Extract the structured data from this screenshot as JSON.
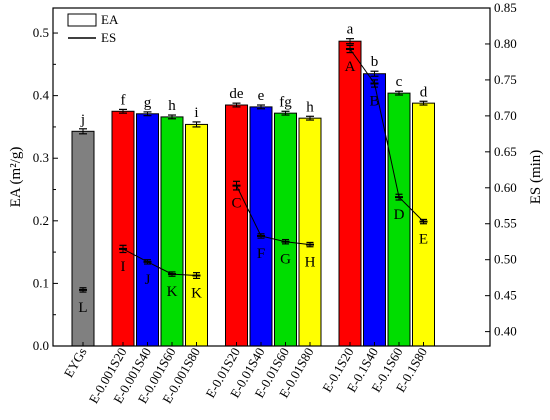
{
  "chart_data": {
    "type": "bar",
    "categories": [
      "EYGs",
      "E-0.001S20",
      "E-0.001S40",
      "E-0.001S60",
      "E-0.001S80",
      "E-0.01S20",
      "E-0.01S40",
      "E-0.01S60",
      "E-0.01S80",
      "E-0.1S20",
      "E-0.1S40",
      "E-0.1S60",
      "E-0.1S80"
    ],
    "groups": [
      [
        0
      ],
      [
        1,
        2,
        3,
        4
      ],
      [
        5,
        6,
        7,
        8
      ],
      [
        9,
        10,
        11,
        12
      ]
    ],
    "bar_colors": [
      "#808080",
      "#ff0000",
      "#0000ff",
      "#00dd00",
      "#ffff00",
      "#ff0000",
      "#0000ff",
      "#00dd00",
      "#ffff00",
      "#ff0000",
      "#0000ff",
      "#00dd00",
      "#ffff00"
    ],
    "series": [
      {
        "name": "EA",
        "kind": "bar",
        "axis": "left",
        "values": [
          0.343,
          0.375,
          0.371,
          0.366,
          0.354,
          0.385,
          0.382,
          0.372,
          0.364,
          0.487,
          0.435,
          0.404,
          0.388
        ],
        "errors": [
          0.004,
          0.003,
          0.003,
          0.003,
          0.004,
          0.003,
          0.003,
          0.003,
          0.003,
          0.004,
          0.004,
          0.003,
          0.003
        ],
        "labels": [
          "j",
          "f",
          "g",
          "h",
          "i",
          "de",
          "e",
          "fg",
          "h",
          "a",
          "b",
          "c",
          "d"
        ]
      },
      {
        "name": "ES",
        "kind": "line",
        "axis": "right",
        "values": [
          0.458,
          0.515,
          0.497,
          0.48,
          0.478,
          0.603,
          0.533,
          0.525,
          0.521,
          0.793,
          0.745,
          0.587,
          0.553
        ],
        "errors": [
          0.003,
          0.005,
          0.003,
          0.003,
          0.004,
          0.006,
          0.003,
          0.003,
          0.003,
          0.005,
          0.005,
          0.004,
          0.003
        ],
        "labels": [
          "L",
          "I",
          "J",
          "K",
          "K",
          "C",
          "F",
          "G",
          "H",
          "A",
          "B",
          "D",
          "E"
        ]
      }
    ],
    "ylabel": "EA (m²/g)",
    "ylabel_right": "ES (min)",
    "ylim": [
      0,
      0.54
    ],
    "ylim_right": [
      0.38,
      0.85
    ],
    "yticks": [
      "0.0",
      "0.1",
      "0.2",
      "0.3",
      "0.4",
      "0.5"
    ],
    "yticks_right": [
      "0.40",
      "0.45",
      "0.50",
      "0.55",
      "0.60",
      "0.65",
      "0.70",
      "0.75",
      "0.80",
      "0.85"
    ],
    "legend": {
      "position": "top-left",
      "entries": [
        "EA",
        "ES"
      ]
    },
    "grid": false
  }
}
